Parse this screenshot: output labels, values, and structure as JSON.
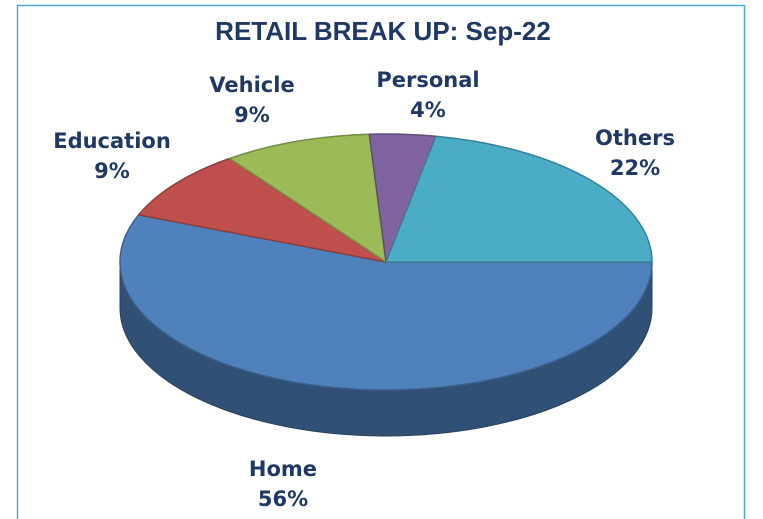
{
  "chart_data": {
    "type": "pie",
    "title": "RETAIL BREAK UP: Sep-22",
    "categories": [
      "Home",
      "Education",
      "Vehicle",
      "Personal",
      "Others"
    ],
    "values": [
      56,
      9,
      9,
      4,
      22
    ],
    "value_labels": [
      "56%",
      "9%",
      "9%",
      "4%",
      "22%"
    ],
    "colors": [
      "#4f81bd",
      "#c0504d",
      "#9bbb59",
      "#8064a2",
      "#4bacc6"
    ]
  }
}
